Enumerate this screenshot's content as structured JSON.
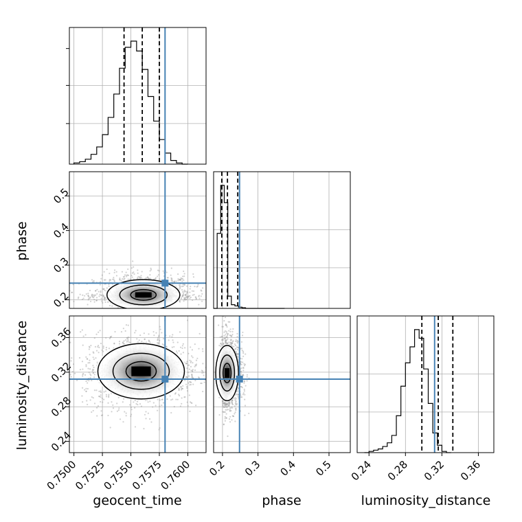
{
  "chart_data": {
    "type": "corner",
    "parameters": [
      "geocent_time",
      "phase",
      "luminosity_distance"
    ],
    "truths": {
      "geocent_time": 0.758,
      "phase": 0.248,
      "luminosity_distance": 0.312
    },
    "truth_color": "#4682b4",
    "quantiles": {
      "geocent_time": [
        0.7544,
        0.756,
        0.7575
      ],
      "phase": [
        0.198,
        0.214,
        0.243
      ],
      "luminosity_distance": [
        0.298,
        0.316,
        0.332
      ]
    },
    "axis_ranges": {
      "geocent_time": [
        0.7496,
        0.7616
      ],
      "phase": [
        0.175,
        0.56
      ],
      "luminosity_distance": [
        0.227,
        0.377
      ],
      "phase_y": [
        0.175,
        0.57
      ],
      "luminosity_distance_y": [
        0.227,
        0.385
      ]
    },
    "ticks": {
      "geocent_time": [
        "0.7500",
        "0.7525",
        "0.7550",
        "0.7575",
        "0.7600"
      ],
      "phase": [
        "0.2",
        "0.3",
        "0.4",
        "0.5"
      ],
      "luminosity_distance": [
        "0.24",
        "0.28",
        "0.32",
        "0.36"
      ]
    },
    "histograms": {
      "geocent_time": {
        "edges": [
          0.75,
          0.7565
        ],
        "bin_edges_start": 0.75,
        "bin_width": 0.0005,
        "counts": [
          1,
          2,
          4,
          8,
          14,
          24,
          38,
          57,
          78,
          95,
          100,
          92,
          77,
          55,
          35,
          20,
          9,
          3,
          1,
          0
        ]
      },
      "phase": {
        "bin_edges_start": 0.175,
        "bin_width": 0.01,
        "counts": [
          0,
          61,
          100,
          86,
          10,
          3,
          2,
          1,
          0.5,
          0,
          0,
          0,
          0,
          0,
          0,
          0,
          0,
          0,
          0,
          0
        ]
      },
      "luminosity_distance": {
        "bin_edges_start": 0.235,
        "bin_width": 0.005,
        "counts": [
          0,
          1,
          2,
          3,
          5,
          8,
          14,
          30,
          54,
          73,
          86,
          100,
          93,
          68,
          40,
          16,
          6,
          1,
          0
        ]
      }
    },
    "pair_centers": {
      "phase_vs_geocent_time": [
        0.7561,
        0.214
      ],
      "luminosity_distance_vs_geocent_time": [
        0.7559,
        0.321
      ],
      "luminosity_distance_vs_phase": [
        0.213,
        0.319
      ]
    },
    "grid": true,
    "xlabels": [
      "geocent_time",
      "phase",
      "luminosity_distance"
    ],
    "ylabels": [
      "",
      "phase",
      "luminosity_distance"
    ]
  }
}
